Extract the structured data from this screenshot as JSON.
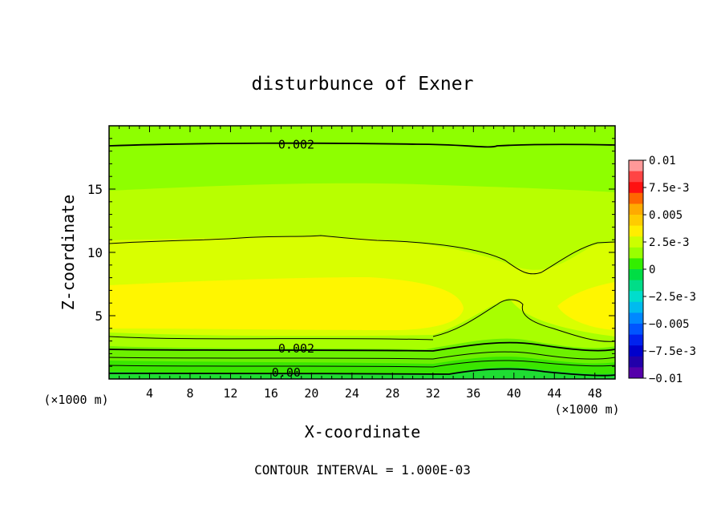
{
  "chart_data": {
    "type": "contour",
    "title": "disturbunce of Exner",
    "xlabel": "X-coordinate",
    "ylabel": "Z-coordinate",
    "x_unit": "(×1000 m)",
    "x_unit_right": "(×1000 m)",
    "footer": "CONTOUR INTERVAL = 1.000E-03",
    "xlim": [
      0,
      50
    ],
    "ylim": [
      0,
      20
    ],
    "xticks": [
      4,
      8,
      12,
      16,
      20,
      24,
      28,
      32,
      36,
      40,
      44,
      48
    ],
    "yticks": [
      5,
      10,
      15
    ],
    "grid": false,
    "contour_interval": 0.001,
    "contour_labels": [
      {
        "text": "0.002",
        "x": 18.5,
        "z": 18.5
      },
      {
        "text": "0.002",
        "x": 18.5,
        "z": 2.4
      },
      {
        "text": "0.00",
        "x": 17.5,
        "z": 0.5
      }
    ],
    "colorbar": {
      "labels": [
        "0.01",
        "7.5e-3",
        "0.005",
        "2.5e-3",
        "0",
        "−2.5e-3",
        "−0.005",
        "−7.5e-3",
        "−0.01"
      ],
      "colors": [
        "#ff9999",
        "#ff4444",
        "#ff1111",
        "#ff6600",
        "#ffaa00",
        "#ffcc00",
        "#ffee00",
        "#ccff00",
        "#99ff00",
        "#33ee00",
        "#00dd44",
        "#00dd88",
        "#00ddcc",
        "#00bbee",
        "#0088ff",
        "#0055ff",
        "#0022ee",
        "#0000cc",
        "#2200aa",
        "#5500aa"
      ]
    },
    "fill_colors": {
      "top": "#8eff00",
      "upper_mid": "#b8ff00",
      "mid": "#d9ff00",
      "core": "#fff600",
      "low_band_1": "#a8ff00",
      "low_band_2": "#6df000",
      "low_band_3": "#3ae600",
      "bottom": "#1fdd33"
    }
  }
}
